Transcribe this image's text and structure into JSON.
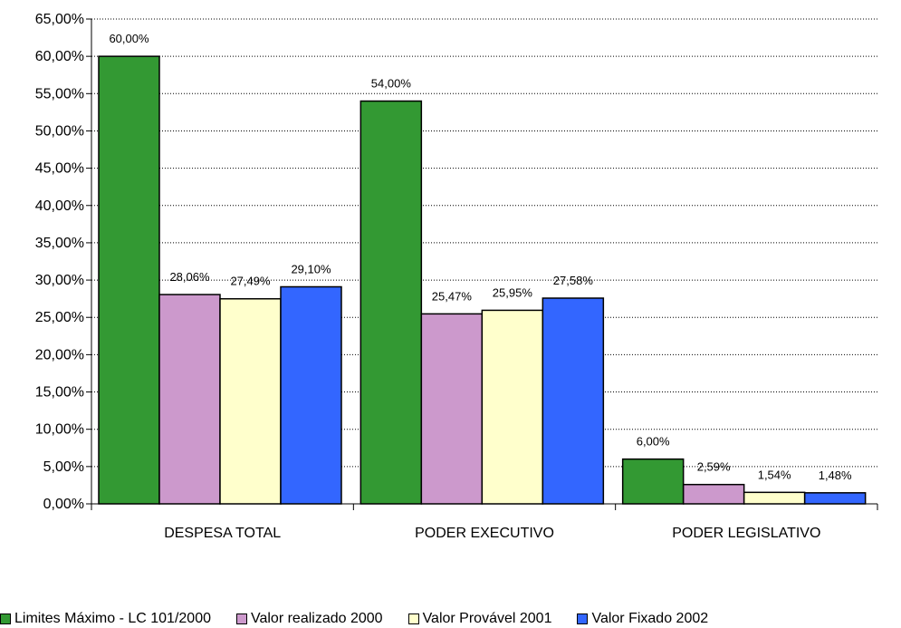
{
  "chart_data": {
    "type": "bar",
    "categories": [
      "DESPESA TOTAL",
      "PODER EXECUTIVO",
      "PODER LEGISLATIVO"
    ],
    "series": [
      {
        "name": "Limites Máximo - LC 101/2000",
        "color": "#339933",
        "values": [
          60.0,
          54.0,
          6.0
        ],
        "labels": [
          "60,00%",
          "54,00%",
          "6,00%"
        ]
      },
      {
        "name": "Valor realizado 2000",
        "color": "#cc99cc",
        "values": [
          28.06,
          25.47,
          2.59
        ],
        "labels": [
          "28,06%",
          "25,47%",
          "2,59%"
        ]
      },
      {
        "name": "Valor Provável 2001",
        "color": "#ffffcc",
        "values": [
          27.49,
          25.95,
          1.54
        ],
        "labels": [
          "27,49%",
          "25,95%",
          "1,54%"
        ]
      },
      {
        "name": "Valor Fixado 2002",
        "color": "#3366ff",
        "values": [
          29.1,
          27.58,
          1.48
        ],
        "labels": [
          "29,10%",
          "27,58%",
          "1,48%"
        ]
      }
    ],
    "yticks": [
      0,
      5,
      10,
      15,
      20,
      25,
      30,
      35,
      40,
      45,
      50,
      55,
      60,
      65
    ],
    "ytick_labels": [
      "0,00%",
      "5,00%",
      "10,00%",
      "15,00%",
      "20,00%",
      "25,00%",
      "30,00%",
      "35,00%",
      "40,00%",
      "45,00%",
      "50,00%",
      "55,00%",
      "60,00%",
      "65,00%"
    ],
    "ylim": [
      0,
      65
    ],
    "grid": "horizontal-dotted",
    "legend_position": "bottom",
    "title": "",
    "xlabel": "",
    "ylabel": ""
  }
}
